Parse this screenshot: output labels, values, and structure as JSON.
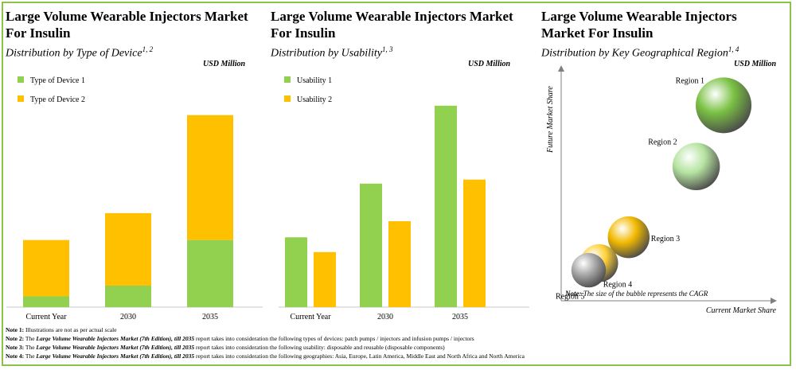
{
  "colors": {
    "series1": "#92d050",
    "series2": "#ffc000",
    "border": "#8bc34a"
  },
  "chart_data": [
    {
      "type": "bar",
      "stacked": true,
      "title": "Large Volume Wearable Injectors Market For Insulin",
      "subtitle": "Distribution by Type of Device",
      "subtitle_sup": "1, 2",
      "unit": "USD Million",
      "categories": [
        "Current Year",
        "2030",
        "2035"
      ],
      "series": [
        {
          "name": "Type of Device 1",
          "values": [
            8,
            16,
            50
          ]
        },
        {
          "name": "Type of Device 2",
          "values": [
            42,
            54,
            93
          ]
        }
      ],
      "ylim": [
        0,
        160
      ]
    },
    {
      "type": "bar",
      "stacked": false,
      "title": "Large Volume Wearable Injectors Market For Insulin",
      "subtitle": "Distribution by Usability",
      "subtitle_sup": "1, 3",
      "unit": "USD Million",
      "categories": [
        "Current Year",
        "2030",
        "2035"
      ],
      "series": [
        {
          "name": "Usability 1",
          "values": [
            52,
            92,
            150
          ]
        },
        {
          "name": "Usability 2",
          "values": [
            41,
            64,
            95
          ]
        }
      ],
      "ylim": [
        0,
        160
      ]
    },
    {
      "type": "scatter",
      "title": "Large Volume Wearable Injectors Market For Insulin",
      "subtitle": "Distribution by Key Geographical Region",
      "subtitle_sup": "1, 4",
      "unit": "USD Million",
      "xlabel": "Current Market Share",
      "ylabel": "Future Market Share",
      "note": "The size of the bubble represents the CAGR",
      "note_label": "Note:",
      "points": [
        {
          "name": "Region 1",
          "x": 7.7,
          "y": 8.3,
          "size": 1.0,
          "color": "#7ac143"
        },
        {
          "name": "Region 2",
          "x": 6.4,
          "y": 5.7,
          "size": 0.85,
          "color": "#b5e3a0"
        },
        {
          "name": "Region 3",
          "x": 3.2,
          "y": 2.7,
          "size": 0.75,
          "color": "#f2b900"
        },
        {
          "name": "Region 4",
          "x": 1.8,
          "y": 1.6,
          "size": 0.68,
          "color": "#ffd033"
        },
        {
          "name": "Region 5",
          "x": 1.3,
          "y": 1.3,
          "size": 0.62,
          "color": "#a9a9a9"
        }
      ]
    }
  ],
  "notes": [
    {
      "label": "Note 1:",
      "text": "Illustrations are not as per actual scale"
    },
    {
      "label": "Note 2:",
      "pre": "The",
      "em": "Large Volume Wearable Injectors Market (7th Edition), till 2035",
      "text": "report takes into consideration the following types of devices: patch pumps / injectors and infusion pumps / injectors"
    },
    {
      "label": "Note 3:",
      "pre": "The",
      "em": "Large Volume Wearable Injectors Market (7th Edition), till 2035",
      "text": "report takes into consideration the following usability: disposable and reusable (disposable components)"
    },
    {
      "label": "Note 4:",
      "pre": "The",
      "em": "Large Volume Wearable Injectors Market (7th Edition), till 2035",
      "text": "report takes into consideration the following geographies: Asia, Europe, Latin America, Middle East and North Africa and North America"
    }
  ]
}
